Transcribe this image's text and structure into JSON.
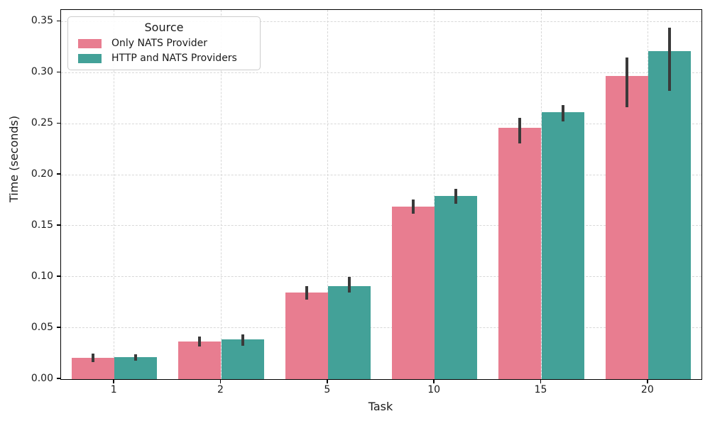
{
  "chart_data": {
    "type": "bar",
    "title": "",
    "xlabel": "Task",
    "ylabel": "Time (seconds)",
    "categories": [
      "1",
      "2",
      "5",
      "10",
      "15",
      "20"
    ],
    "series": [
      {
        "name": "Only NATS Provider",
        "color": "#e87d90",
        "values": [
          0.021,
          0.037,
          0.085,
          0.169,
          0.246,
          0.297
        ],
        "err_lo": [
          0.017,
          0.032,
          0.078,
          0.162,
          0.231,
          0.266
        ],
        "err_hi": [
          0.025,
          0.042,
          0.091,
          0.176,
          0.256,
          0.315
        ]
      },
      {
        "name": "HTTP and NATS Providers",
        "color": "#43a198",
        "values": [
          0.0215,
          0.039,
          0.091,
          0.179,
          0.261,
          0.321
        ],
        "err_lo": [
          0.018,
          0.033,
          0.085,
          0.172,
          0.252,
          0.282
        ],
        "err_hi": [
          0.024,
          0.044,
          0.1,
          0.186,
          0.268,
          0.344
        ]
      }
    ],
    "ylim": [
      0,
      0.3614
    ],
    "yticks": [
      0,
      0.05,
      0.1,
      0.15,
      0.2,
      0.25,
      0.3,
      0.35
    ],
    "ytick_labels": [
      "0.00",
      "0.05",
      "0.10",
      "0.15",
      "0.20",
      "0.25",
      "0.30",
      "0.35"
    ],
    "legend": {
      "title": "Source",
      "position": "upper-left"
    },
    "grid": {
      "show": true,
      "style": "dashed",
      "color": "#d8d8d8"
    },
    "error_bar_color": "#3a3a3a",
    "axis_color": "#000000"
  }
}
